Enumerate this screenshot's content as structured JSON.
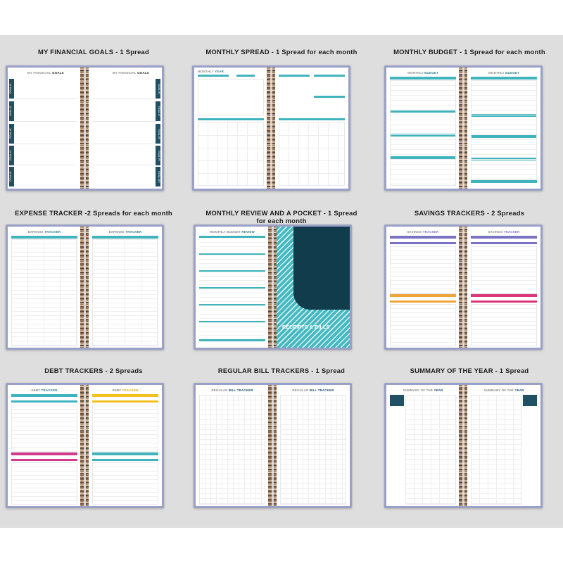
{
  "captions": [
    "MY FINANCIAL GOALS  - 1 Spread",
    "MONTHLY SPREAD - 1 Spread for each month",
    "MONTHLY BUDGET - 1 Spread for each month",
    "EXPENSE TRACKER -2 Spreads for each month",
    "MONTHLY REVIEW AND A POCKET - 1 Spread\nfor each month",
    "SAVINGS TRACKERS - 2 Spreads",
    "DEBT TRACKERS - 2 Spreads",
    "REGULAR BILL TRACKERS - 1 Spread",
    "SUMMARY OF THE YEAR - 1 Spread"
  ],
  "pages": {
    "goals": {
      "pre": "MY FINANCIAL ",
      "bold": "GOALS"
    },
    "monthly": {
      "pre": "MONTHLY ",
      "bold": "YEAR"
    },
    "budget": {
      "pre": "MONTHLY ",
      "bold": "BUDGET"
    },
    "expense": {
      "pre": "EXPENSE ",
      "bold": "TRACKER"
    },
    "review": {
      "pre": "MONTHLY BUDGET ",
      "bold": "REVIEW"
    },
    "savings": {
      "pre": "SAVINGS ",
      "bold": "TRACKER"
    },
    "debt": {
      "pre": "DEBT ",
      "bold": "TRACKER"
    },
    "bill": {
      "pre": "REGULAR ",
      "bold": "BILL TRACKER"
    },
    "summary": {
      "pre": "SUMMARY OF THE ",
      "bold": "YEAR"
    }
  },
  "pocket_label": "RECEIPTS & BILLS",
  "goal_labels_left": [
    "GOAL #1",
    "GOAL #2",
    "GOAL #3",
    "GOAL #4",
    "GOAL #5"
  ],
  "goal_labels_right": [
    "GOAL #6",
    "GOAL #7",
    "GOAL #8",
    "GOAL #9",
    "GOAL #10"
  ],
  "colors": {
    "background": "#dedede",
    "cover": "#9aa0c6",
    "teal": "#3fb4bd",
    "navy": "#1f5063",
    "purple": "#7a72c2",
    "orange": "#f0a43a",
    "pink": "#d9377a",
    "yellow": "#f2c01f",
    "magenta": "#d23a8a"
  }
}
